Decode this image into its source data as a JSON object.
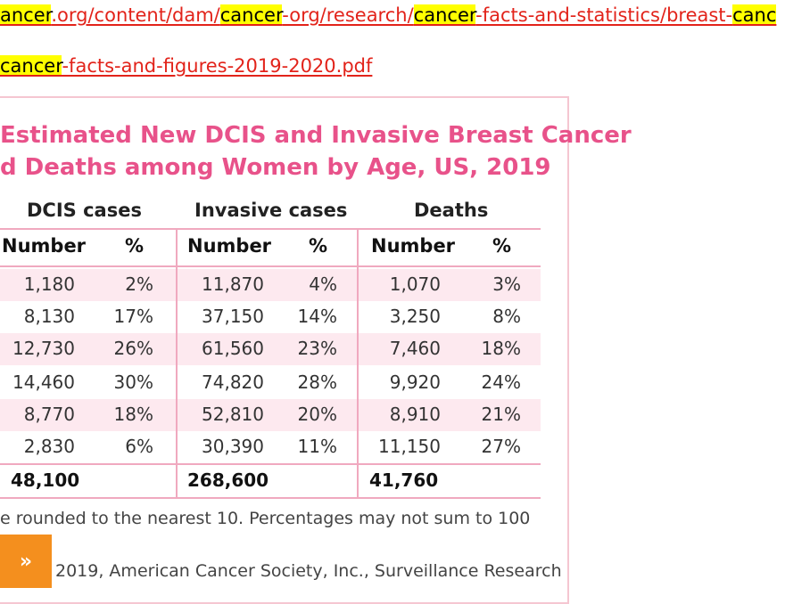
{
  "links": {
    "line1": [
      {
        "text": "ancer",
        "hl": true
      },
      {
        "text": ".org/content/dam/",
        "hl": false
      },
      {
        "text": "cancer",
        "hl": true
      },
      {
        "text": "-org/research/",
        "hl": false
      },
      {
        "text": "cancer",
        "hl": true
      },
      {
        "text": "-facts-and-statistics/breast-",
        "hl": false
      },
      {
        "text": "canc",
        "hl": true
      }
    ],
    "line2": [
      {
        "text": "cancer",
        "hl": true
      },
      {
        "text": "-facts-and-figures-2019-2020.pdf",
        "hl": false
      }
    ]
  },
  "table": {
    "title_line1": "Estimated New DCIS and Invasive Breast Cancer",
    "title_line2": "d Deaths among Women by Age, US, 2019",
    "groups": [
      "DCIS cases",
      "Invasive cases",
      "Deaths"
    ],
    "subheaders": [
      "Number",
      "%",
      "Number",
      "%",
      "Number",
      "%"
    ],
    "rows": [
      [
        "1,180",
        "2%",
        "11,870",
        "4%",
        "1,070",
        "3%"
      ],
      [
        "8,130",
        "17%",
        "37,150",
        "14%",
        "3,250",
        "8%"
      ],
      [
        "12,730",
        "26%",
        "61,560",
        "23%",
        "7,460",
        "18%"
      ],
      [
        "14,460",
        "30%",
        "74,820",
        "28%",
        "9,920",
        "24%"
      ],
      [
        "8,770",
        "18%",
        "52,810",
        "20%",
        "8,910",
        "21%"
      ],
      [
        "2,830",
        "6%",
        "30,390",
        "11%",
        "11,150",
        "27%"
      ]
    ],
    "totals": [
      "48,100",
      "",
      "268,600",
      "",
      "41,760",
      ""
    ],
    "row_colors": [
      "#fde9ef",
      "#ffffff"
    ],
    "accent_color": "#e8528a"
  },
  "notes": {
    "rounding": "e rounded to the nearest 10. Percentages may not sum to 100",
    "source": "2019, American Cancer Society, Inc., Surveillance Research"
  },
  "expand_button": {
    "label": "»",
    "color": "#f48f1e"
  }
}
